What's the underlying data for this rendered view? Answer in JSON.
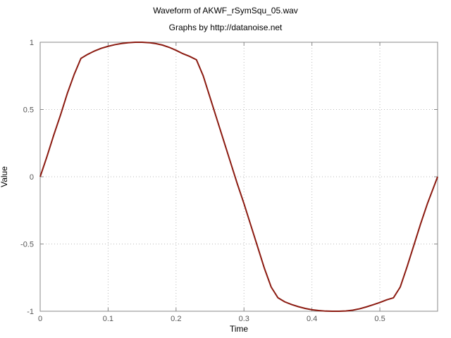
{
  "chart_data": {
    "type": "line",
    "title": "Waveform of AKWF_rSymSqu_05.wav",
    "subtitle": "Graphs by http://datanoise.net",
    "xlabel": "Time",
    "ylabel": "Value",
    "xlim": [
      0,
      0.585
    ],
    "ylim": [
      -1,
      1
    ],
    "x_ticks": [
      0,
      0.1,
      0.2,
      0.3,
      0.4,
      0.5
    ],
    "x_tick_labels": [
      "0",
      "0.1",
      "0.2",
      "0.3",
      "0.4",
      "0.5"
    ],
    "y_ticks": [
      1,
      0.5,
      0,
      -0.5,
      -1
    ],
    "y_tick_labels": [
      "1",
      "0.5",
      "0",
      "-0.5",
      "-1"
    ],
    "grid": true,
    "line_color": "#8b1a10",
    "series": [
      {
        "x": [
          0,
          0.01,
          0.02,
          0.03,
          0.04,
          0.05,
          0.06,
          0.07,
          0.08,
          0.09,
          0.1,
          0.11,
          0.12,
          0.13,
          0.14,
          0.15,
          0.16,
          0.17,
          0.18,
          0.19,
          0.2,
          0.21,
          0.22,
          0.23,
          0.24,
          0.25,
          0.26,
          0.27,
          0.28,
          0.29,
          0.3,
          0.31,
          0.32,
          0.33,
          0.34,
          0.35,
          0.36,
          0.37,
          0.38,
          0.39,
          0.4,
          0.41,
          0.42,
          0.43,
          0.44,
          0.45,
          0.46,
          0.47,
          0.48,
          0.49,
          0.5,
          0.51,
          0.52,
          0.53,
          0.54,
          0.55,
          0.56,
          0.57,
          0.585
        ],
        "y": [
          0,
          0.15,
          0.31,
          0.46,
          0.62,
          0.76,
          0.88,
          0.91,
          0.935,
          0.955,
          0.97,
          0.982,
          0.991,
          0.997,
          1.0,
          1.0,
          0.997,
          0.99,
          0.979,
          0.962,
          0.94,
          0.915,
          0.895,
          0.87,
          0.75,
          0.59,
          0.43,
          0.27,
          0.11,
          -0.05,
          -0.2,
          -0.36,
          -0.52,
          -0.68,
          -0.82,
          -0.9,
          -0.93,
          -0.95,
          -0.966,
          -0.979,
          -0.989,
          -0.995,
          -0.999,
          -1.0,
          -1.0,
          -0.998,
          -0.992,
          -0.982,
          -0.968,
          -0.952,
          -0.935,
          -0.915,
          -0.9,
          -0.82,
          -0.67,
          -0.51,
          -0.35,
          -0.2,
          0
        ]
      }
    ]
  }
}
